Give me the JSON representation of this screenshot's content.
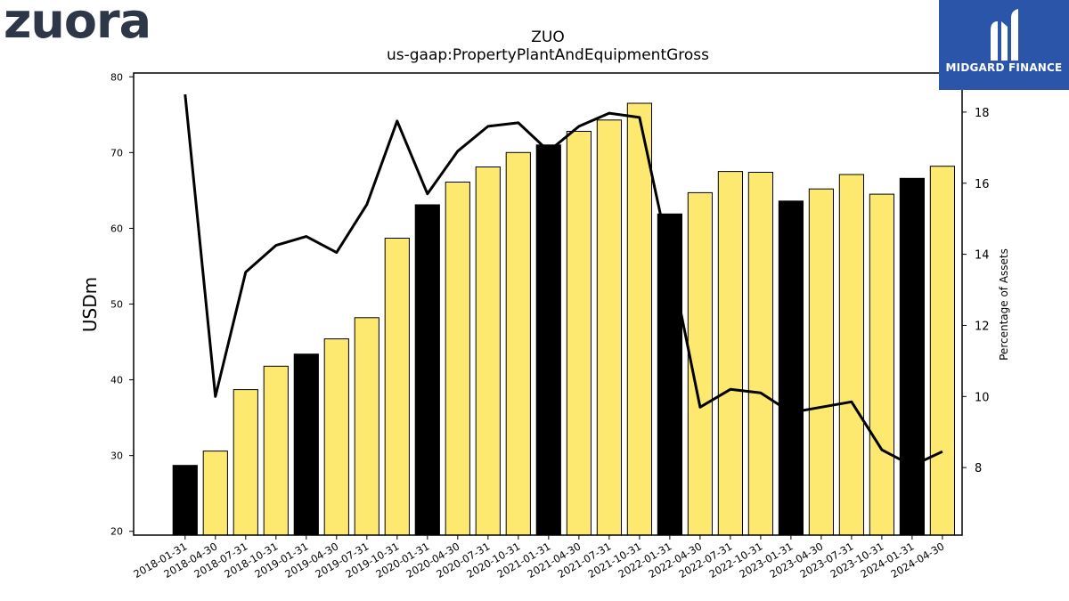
{
  "branding": {
    "left_logo_text": "zuora",
    "right_logo_text": "MIDGARD FINANCE",
    "right_logo_bg": "#2a55a8"
  },
  "chart_data": {
    "type": "bar",
    "title": "ZUO",
    "subtitle": "us-gaap:PropertyPlantAndEquipmentGross",
    "ylabel": "USDm",
    "y2label": "Percentage of Assets",
    "ylim": [
      19.5,
      80.5
    ],
    "y2lim": [
      6.1,
      19.1
    ],
    "yticks": [
      20,
      30,
      40,
      50,
      60,
      70,
      80
    ],
    "y2ticks": [
      8,
      10,
      12,
      14,
      16,
      18
    ],
    "categories": [
      "2018-01-31",
      "2018-04-30",
      "2018-07-31",
      "2018-10-31",
      "2019-01-31",
      "2019-04-30",
      "2019-07-31",
      "2019-10-31",
      "2020-01-31",
      "2020-04-30",
      "2020-07-31",
      "2020-10-31",
      "2021-01-31",
      "2021-04-30",
      "2021-07-31",
      "2021-10-31",
      "2022-01-31",
      "2022-04-30",
      "2022-07-31",
      "2022-10-31",
      "2023-01-31",
      "2023-04-30",
      "2023-07-31",
      "2023-10-31",
      "2024-01-31",
      "2024-04-30"
    ],
    "series": [
      {
        "kind": "bar",
        "values": [
          28.7,
          30.6,
          38.7,
          41.8,
          43.4,
          45.4,
          48.2,
          58.7,
          63.1,
          66.1,
          68.1,
          70.0,
          71.0,
          72.8,
          74.3,
          76.5,
          61.9,
          64.7,
          67.5,
          67.4,
          63.6,
          65.2,
          67.1,
          64.5,
          66.6,
          68.2
        ],
        "fiscal_year_end_color": "#000000",
        "quarter_color": "#fde96f",
        "fiscal_year_end": [
          true,
          false,
          false,
          false,
          true,
          false,
          false,
          false,
          true,
          false,
          false,
          false,
          true,
          false,
          false,
          false,
          true,
          false,
          false,
          false,
          true,
          false,
          false,
          false,
          true,
          false
        ]
      },
      {
        "kind": "line",
        "axis": "right",
        "color": "#000000",
        "values": [
          18.5,
          10.0,
          13.5,
          14.25,
          14.5,
          14.05,
          15.4,
          17.75,
          15.7,
          16.9,
          17.6,
          17.7,
          16.9,
          17.6,
          17.97,
          17.85,
          13.9,
          9.7,
          10.2,
          10.1,
          9.55,
          9.7,
          9.85,
          8.5,
          8.05,
          8.45
        ]
      }
    ],
    "grid": false
  }
}
